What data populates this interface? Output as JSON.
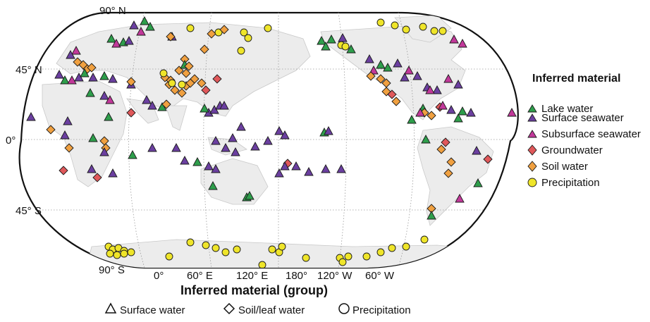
{
  "map": {
    "lat_labels": [
      "90° N",
      "45° N",
      "0°",
      "45° S",
      "90° S"
    ],
    "lon_labels": [
      "0°",
      "60° E",
      "120° E",
      "180°",
      "120° W",
      "60° W"
    ],
    "legend": {
      "title": "Inferred material",
      "items": [
        {
          "label": "Lake water",
          "shape": "triangle",
          "color": "#2e9e4b"
        },
        {
          "label": "Surface seawater",
          "shape": "triangle",
          "color": "#6b3fa0"
        },
        {
          "label": "Subsurface seawater",
          "shape": "triangle",
          "color": "#c2389a"
        },
        {
          "label": "Groundwater",
          "shape": "diamond",
          "color": "#e0585a"
        },
        {
          "label": "Soil water",
          "shape": "diamond",
          "color": "#f0a040"
        },
        {
          "label": "Precipitation",
          "shape": "circle",
          "color": "#efe52a"
        }
      ]
    },
    "group_legend": {
      "title": "Inferred material (group)",
      "items": [
        {
          "label": "Surface water",
          "shape": "triangle"
        },
        {
          "label": "Soil/leaf water",
          "shape": "diamond"
        },
        {
          "label": "Precipitation",
          "shape": "circle"
        }
      ]
    }
  }
}
